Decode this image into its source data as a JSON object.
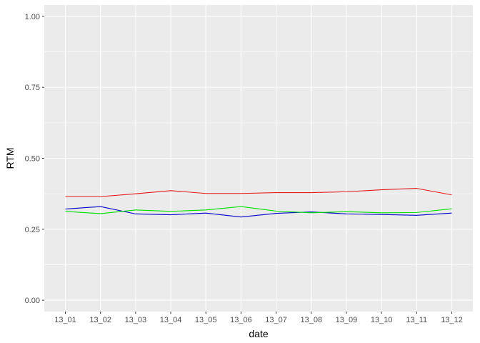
{
  "chart_data": {
    "type": "line",
    "xlabel": "date",
    "ylabel": "RTM",
    "categories": [
      "13_01",
      "13_02",
      "13_03",
      "13_04",
      "13_05",
      "13_06",
      "13_07",
      "13_08",
      "13_09",
      "13_10",
      "13_11",
      "13_12"
    ],
    "ylim": [
      -0.04,
      1.04
    ],
    "yticks": [
      0.0,
      0.25,
      0.5,
      0.75,
      1.0
    ],
    "ytick_labels": [
      "0.00",
      "0.25",
      "0.50",
      "0.75",
      "1.00"
    ],
    "grid": true,
    "legend": "none",
    "background": "#ebebeb",
    "gridline_color": "#ffffff",
    "series": [
      {
        "color": "#e31a1c",
        "values": [
          0.365,
          0.365,
          0.375,
          0.386,
          0.376,
          0.376,
          0.379,
          0.379,
          0.382,
          0.389,
          0.394,
          0.371
        ]
      },
      {
        "color": "#0000cc",
        "values": [
          0.321,
          0.33,
          0.304,
          0.301,
          0.307,
          0.293,
          0.306,
          0.311,
          0.304,
          0.302,
          0.299,
          0.307
        ]
      },
      {
        "color": "#00dd00",
        "values": [
          0.313,
          0.305,
          0.318,
          0.313,
          0.318,
          0.33,
          0.314,
          0.308,
          0.312,
          0.308,
          0.309,
          0.322
        ]
      }
    ]
  }
}
